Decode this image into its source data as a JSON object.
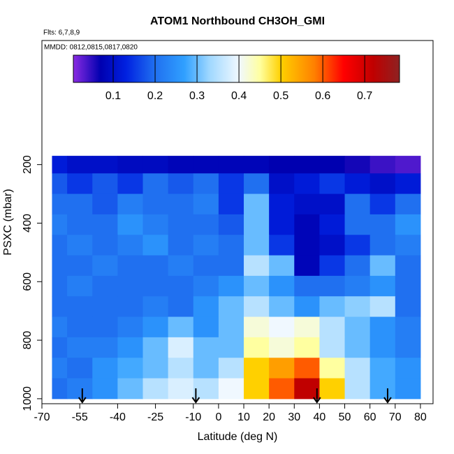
{
  "chart_data": {
    "type": "heatmap",
    "title": "ATOM1 Northbound CH3OH_GMI",
    "subtitle": "Flts: 6,7,8,9",
    "annotation": "MMDD: 0812,0815,0817,0820",
    "xlabel": "Latitude (deg N)",
    "ylabel": "PSXC (mbar)",
    "xlim": [
      -70,
      85
    ],
    "ylim": [
      1017,
      -224
    ],
    "xticks": [
      -70,
      -55,
      -40,
      -25,
      -10,
      0,
      10,
      20,
      30,
      40,
      50,
      60,
      70,
      80
    ],
    "yticks": [
      200,
      400,
      600,
      800,
      1000
    ],
    "x_edges": [
      -66,
      -60,
      -50,
      -40,
      -30,
      -20,
      -10,
      0,
      10,
      20,
      30,
      40,
      50,
      60,
      70,
      80
    ],
    "y_edges": [
      170,
      230,
      300,
      370,
      440,
      510,
      580,
      650,
      720,
      790,
      860,
      930,
      1000
    ],
    "values": [
      [
        0.12,
        0.1,
        0.1,
        0.09,
        0.09,
        0.08,
        0.08,
        0.08,
        0.08,
        0.07,
        0.07,
        0.07,
        0.06,
        0.04,
        0.03
      ],
      [
        0.18,
        0.15,
        0.18,
        0.15,
        0.2,
        0.18,
        0.2,
        0.15,
        0.2,
        0.1,
        0.12,
        0.15,
        0.12,
        0.1,
        0.12
      ],
      [
        0.2,
        0.2,
        0.18,
        0.22,
        0.2,
        0.2,
        0.22,
        0.15,
        0.3,
        0.12,
        0.1,
        0.1,
        0.2,
        0.15,
        0.2
      ],
      [
        0.22,
        0.2,
        0.2,
        0.25,
        0.22,
        0.2,
        0.2,
        0.18,
        0.3,
        0.12,
        0.08,
        0.12,
        0.2,
        0.2,
        0.25
      ],
      [
        0.2,
        0.22,
        0.2,
        0.22,
        0.25,
        0.2,
        0.22,
        0.2,
        0.3,
        0.15,
        0.08,
        0.1,
        0.15,
        0.2,
        0.22
      ],
      [
        0.2,
        0.2,
        0.22,
        0.2,
        0.2,
        0.22,
        0.2,
        0.2,
        0.35,
        0.3,
        0.08,
        0.15,
        0.2,
        0.3,
        0.2
      ],
      [
        0.2,
        0.22,
        0.2,
        0.2,
        0.2,
        0.2,
        0.22,
        0.25,
        0.3,
        0.25,
        0.2,
        0.2,
        0.22,
        0.25,
        0.2
      ],
      [
        0.2,
        0.2,
        0.2,
        0.2,
        0.22,
        0.2,
        0.25,
        0.3,
        0.35,
        0.3,
        0.25,
        0.3,
        0.32,
        0.35,
        0.2
      ],
      [
        0.22,
        0.2,
        0.2,
        0.22,
        0.25,
        0.3,
        0.25,
        0.3,
        0.42,
        0.4,
        0.42,
        0.35,
        0.3,
        0.25,
        0.22
      ],
      [
        0.2,
        0.22,
        0.22,
        0.25,
        0.3,
        0.38,
        0.3,
        0.3,
        0.45,
        0.42,
        0.45,
        0.35,
        0.3,
        0.25,
        0.22
      ],
      [
        0.22,
        0.2,
        0.25,
        0.28,
        0.3,
        0.35,
        0.3,
        0.35,
        0.5,
        0.55,
        0.6,
        0.45,
        0.35,
        0.28,
        0.25
      ],
      [
        0.2,
        0.22,
        0.25,
        0.3,
        0.35,
        0.38,
        0.35,
        0.4,
        0.5,
        0.6,
        0.72,
        0.5,
        0.35,
        0.28,
        0.25
      ]
    ],
    "clim": [
      0.005,
      0.783
    ],
    "cticks": [
      0.1,
      0.2,
      0.3,
      0.4,
      0.5,
      0.6,
      0.7
    ],
    "colorscale": [
      [
        0,
        "#8a2be2"
      ],
      [
        0.07,
        "#0000b0"
      ],
      [
        0.13,
        "#0020e0"
      ],
      [
        0.2,
        "#2070f0"
      ],
      [
        0.27,
        "#30a0ff"
      ],
      [
        0.33,
        "#a0d8ff"
      ],
      [
        0.4,
        "#f0f8ff"
      ],
      [
        0.45,
        "#ffffa0"
      ],
      [
        0.5,
        "#ffd000"
      ],
      [
        0.58,
        "#ff8000"
      ],
      [
        0.65,
        "#ff0000"
      ],
      [
        0.72,
        "#c00000"
      ],
      [
        0.78,
        "#902020"
      ]
    ],
    "arrows": [
      -54,
      -9,
      39,
      67
    ]
  }
}
